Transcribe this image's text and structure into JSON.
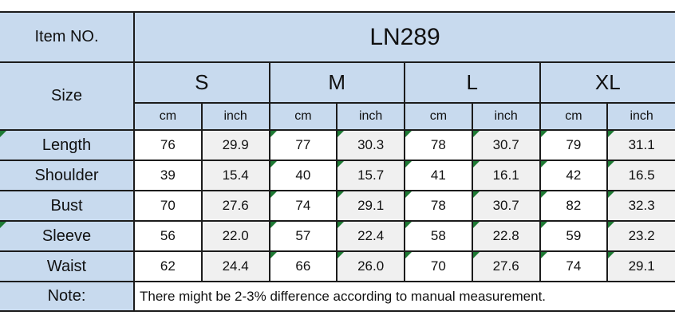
{
  "header": {
    "item_no_label": "Item NO.",
    "item_no_value": "LN289",
    "size_label": "Size"
  },
  "sizes": [
    "S",
    "M",
    "L",
    "XL"
  ],
  "unit_labels": [
    "cm",
    "inch"
  ],
  "measurements": {
    "rows": [
      {
        "label": "Length",
        "values": [
          "76",
          "29.9",
          "77",
          "30.3",
          "78",
          "30.7",
          "79",
          "31.1"
        ]
      },
      {
        "label": "Shoulder",
        "values": [
          "39",
          "15.4",
          "40",
          "15.7",
          "41",
          "16.1",
          "42",
          "16.5"
        ]
      },
      {
        "label": "Bust",
        "values": [
          "70",
          "27.6",
          "74",
          "29.1",
          "78",
          "30.7",
          "82",
          "32.3"
        ]
      },
      {
        "label": "Sleeve",
        "values": [
          "56",
          "22.0",
          "57",
          "22.4",
          "58",
          "22.8",
          "59",
          "23.2"
        ]
      },
      {
        "label": "Waist",
        "values": [
          "62",
          "24.4",
          "66",
          "26.0",
          "70",
          "27.6",
          "74",
          "29.1"
        ]
      }
    ]
  },
  "note": {
    "label": "Note:",
    "text": "There might be 2-3% difference according to manual measurement."
  },
  "colors": {
    "header_fill": "#c8daee",
    "cm_cell_fill": "#ffffff",
    "inch_cell_fill": "#f0f0f0",
    "border": "#1c1c1c",
    "flag_green": "#1e7a34",
    "text": "#111111"
  },
  "icons": {
    "green_triangle": "excel-style corner flag triangle"
  },
  "chart_data": {
    "type": "table",
    "title": "LN289",
    "columns": [
      "Item",
      "S cm",
      "S inch",
      "M cm",
      "M inch",
      "L cm",
      "L inch",
      "XL cm",
      "XL inch"
    ],
    "rows": [
      [
        "Length",
        "76",
        "29.9",
        "77",
        "30.3",
        "78",
        "30.7",
        "79",
        "31.1"
      ],
      [
        "Shoulder",
        "39",
        "15.4",
        "40",
        "15.7",
        "41",
        "16.1",
        "42",
        "16.5"
      ],
      [
        "Bust",
        "70",
        "27.6",
        "74",
        "29.1",
        "78",
        "30.7",
        "82",
        "32.3"
      ],
      [
        "Sleeve",
        "56",
        "22.0",
        "57",
        "22.4",
        "58",
        "22.8",
        "59",
        "23.2"
      ],
      [
        "Waist",
        "62",
        "24.4",
        "66",
        "26.0",
        "70",
        "27.6",
        "74",
        "29.1"
      ]
    ],
    "note": "There might be 2-3% difference according to manual measurement."
  }
}
